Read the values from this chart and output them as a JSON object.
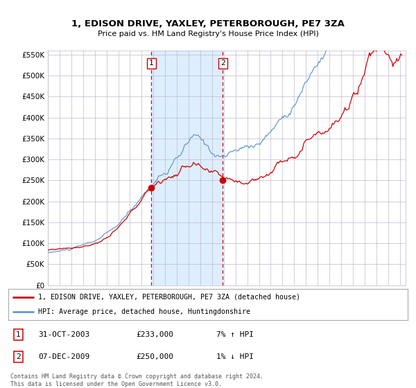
{
  "title": "1, EDISON DRIVE, YAXLEY, PETERBOROUGH, PE7 3ZA",
  "subtitle": "Price paid vs. HM Land Registry's House Price Index (HPI)",
  "sale1_date": "31-OCT-2003",
  "sale1_price": 233000,
  "sale1_hpi_pct": "7% ↑ HPI",
  "sale1_label": "1",
  "sale2_date": "07-DEC-2009",
  "sale2_price": 250000,
  "sale2_hpi_pct": "1% ↓ HPI",
  "sale2_label": "2",
  "legend_line1": "1, EDISON DRIVE, YAXLEY, PETERBOROUGH, PE7 3ZA (detached house)",
  "legend_line2": "HPI: Average price, detached house, Huntingdonshire",
  "footnote": "Contains HM Land Registry data © Crown copyright and database right 2024.\nThis data is licensed under the Open Government Licence v3.0.",
  "hpi_color": "#6699cc",
  "price_color": "#cc0000",
  "marker_color": "#cc0000",
  "shade_color": "#ddeeff",
  "grid_color": "#bbbbcc",
  "bg_color": "#ffffff",
  "ylim": [
    0,
    560000
  ],
  "yticks": [
    0,
    50000,
    100000,
    150000,
    200000,
    250000,
    300000,
    350000,
    400000,
    450000,
    500000,
    550000
  ],
  "sale1_x": 2003.833,
  "sale2_x": 2009.917
}
